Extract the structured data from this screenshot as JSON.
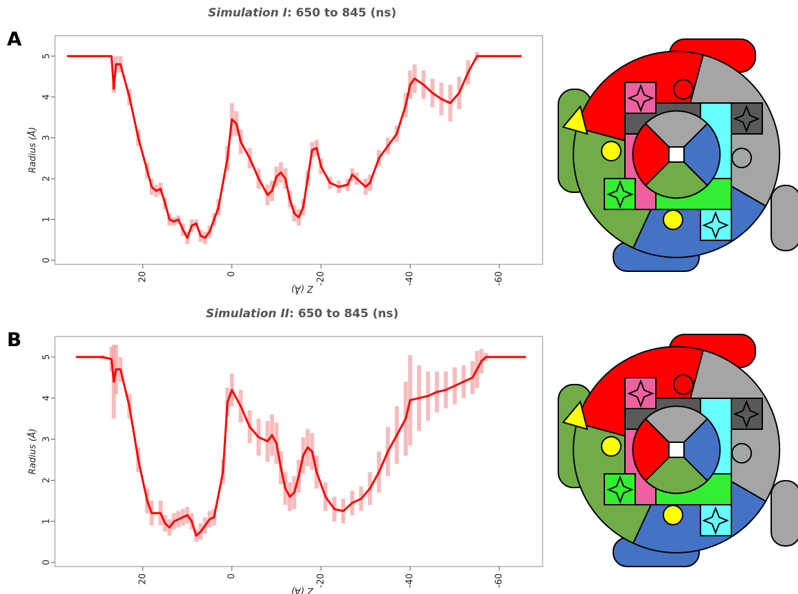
{
  "chart_data": [
    {
      "type": "line",
      "label": "A",
      "title": {
        "emphasis": "Simulation I",
        "rest": ": 650 to 845 (ns)"
      },
      "x_label": "Z (Å)",
      "y_label": "Radius (Å)",
      "xlim": [
        39.7,
        -69.7
      ],
      "ylim": [
        -0.1,
        5.5
      ],
      "xticks": [
        20,
        0,
        -20,
        -40,
        -60
      ],
      "yticks": [
        0,
        1,
        2,
        3,
        4,
        5
      ],
      "color": "#ff0000",
      "error_color": "#f4a0a0",
      "x": [
        37,
        33,
        29,
        27,
        26.5,
        26,
        25,
        23,
        21,
        19,
        18,
        17,
        16,
        15,
        14,
        13,
        12,
        11,
        10,
        9,
        8,
        7,
        6,
        5,
        4,
        3,
        1,
        0,
        -1,
        -2,
        -4,
        -6,
        -8,
        -9,
        -10,
        -11,
        -12,
        -13,
        -14,
        -15,
        -16,
        -17,
        -18,
        -19,
        -20,
        -22,
        -24,
        -26,
        -27,
        -28,
        -30,
        -31,
        -33,
        -35,
        -37,
        -39,
        -40,
        -41,
        -43,
        -45,
        -47,
        -49,
        -51,
        -53,
        -55,
        -57,
        -60,
        -65
      ],
      "values": [
        5,
        5,
        5,
        5,
        4.2,
        4.8,
        4.8,
        4.0,
        3.0,
        2.2,
        1.8,
        1.7,
        1.75,
        1.4,
        1.0,
        0.95,
        1.0,
        0.75,
        0.55,
        0.85,
        0.9,
        0.6,
        0.55,
        0.7,
        1.0,
        1.3,
        2.5,
        3.45,
        3.35,
        2.9,
        2.5,
        2.0,
        1.6,
        1.7,
        2.05,
        2.15,
        2.0,
        1.5,
        1.15,
        1.05,
        1.3,
        2.0,
        2.7,
        2.75,
        2.3,
        1.9,
        1.8,
        1.85,
        2.1,
        2.0,
        1.8,
        1.9,
        2.5,
        2.8,
        3.1,
        3.8,
        4.3,
        4.45,
        4.3,
        4.1,
        3.95,
        3.85,
        4.1,
        4.6,
        5.0,
        5.0,
        5.0,
        5.0
      ],
      "errors": [
        0,
        0,
        0,
        0,
        0.1,
        0.2,
        0.2,
        0.2,
        0.2,
        0.2,
        0.2,
        0.15,
        0.15,
        0.15,
        0.15,
        0.1,
        0.1,
        0.15,
        0.15,
        0.15,
        0.1,
        0.15,
        0.15,
        0.15,
        0.15,
        0.2,
        0.3,
        0.4,
        0.3,
        0.3,
        0.25,
        0.25,
        0.25,
        0.25,
        0.25,
        0.25,
        0.25,
        0.2,
        0.2,
        0.2,
        0.2,
        0.2,
        0.2,
        0.2,
        0.2,
        0.15,
        0.15,
        0.15,
        0.15,
        0.15,
        0.2,
        0.2,
        0.2,
        0.2,
        0.2,
        0.3,
        0.35,
        0.35,
        0.35,
        0.35,
        0.4,
        0.45,
        0.4,
        0.3,
        0.1,
        0,
        0,
        0
      ]
    },
    {
      "type": "line",
      "label": "B",
      "title": {
        "emphasis": "Simulation II",
        "rest": ": 650 to 845 (ns)"
      },
      "x_label": "Z (Å)",
      "y_label": "Radius (Å)",
      "xlim": [
        39.7,
        -69.7
      ],
      "ylim": [
        -0.1,
        5.5
      ],
      "xticks": [
        20,
        0,
        -20,
        -40,
        -60
      ],
      "yticks": [
        0,
        1,
        2,
        3,
        4,
        5
      ],
      "color": "#ff0000",
      "error_color": "#f4a0a0",
      "x": [
        37,
        36,
        35,
        31,
        29,
        27,
        26.5,
        26,
        25,
        23,
        21,
        19,
        18,
        16,
        15,
        14,
        13,
        12,
        11,
        10,
        9,
        8,
        7,
        6,
        5,
        4,
        2,
        1,
        0,
        -2,
        -4,
        -6,
        -8,
        -9,
        -10,
        -11,
        -12,
        -13,
        -14,
        -15,
        -16,
        -17,
        -18,
        -19,
        -21,
        -23,
        -25,
        -27,
        -29,
        -31,
        -33,
        -35,
        -37,
        -39,
        -40,
        -42,
        -44,
        -46,
        -48,
        -50,
        -52,
        -54,
        -55,
        -56,
        -57,
        -60,
        -66
      ],
      "values": [
        5,
        null,
        5,
        5,
        5,
        4.95,
        4.4,
        4.7,
        4.7,
        3.8,
        2.5,
        1.5,
        1.2,
        1.2,
        0.95,
        0.85,
        1.0,
        1.05,
        1.1,
        1.15,
        1.0,
        0.65,
        0.75,
        0.9,
        1.05,
        1.1,
        2.2,
        3.9,
        4.2,
        3.8,
        3.3,
        3.05,
        2.95,
        3.1,
        2.9,
        2.3,
        1.8,
        1.6,
        1.7,
        2.1,
        2.6,
        2.8,
        2.7,
        2.2,
        1.6,
        1.3,
        1.25,
        1.45,
        1.55,
        1.8,
        2.2,
        2.7,
        3.1,
        3.5,
        3.95,
        4.0,
        4.05,
        4.15,
        4.2,
        4.3,
        4.4,
        4.5,
        4.7,
        4.9,
        5.0,
        5.0,
        5.0
      ],
      "errors": [
        0,
        null,
        0,
        0,
        0.05,
        0.3,
        0.9,
        0.6,
        0.3,
        0.3,
        0.3,
        0.3,
        0.3,
        0.3,
        0.2,
        0.2,
        0.2,
        0.2,
        0.2,
        0.2,
        0.2,
        0.15,
        0.2,
        0.2,
        0.2,
        0.2,
        0.3,
        0.35,
        0.4,
        0.4,
        0.4,
        0.45,
        0.5,
        0.5,
        0.5,
        0.4,
        0.4,
        0.35,
        0.4,
        0.4,
        0.45,
        0.45,
        0.45,
        0.4,
        0.35,
        0.3,
        0.3,
        0.3,
        0.3,
        0.4,
        0.5,
        0.6,
        0.7,
        0.9,
        1.1,
        0.8,
        0.6,
        0.5,
        0.45,
        0.45,
        0.4,
        0.4,
        0.45,
        0.3,
        0.1,
        0,
        0
      ]
    }
  ]
}
